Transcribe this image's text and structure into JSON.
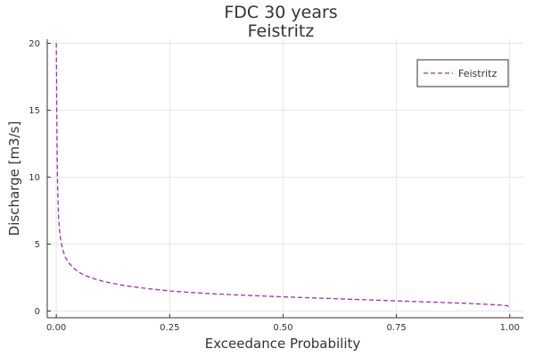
{
  "chart_data": {
    "type": "line",
    "title": "FDC 30 years",
    "subtitle": "Feistritz",
    "xlabel": "Exceedance Probability",
    "ylabel": "Discharge [m3/s]",
    "xlim": [
      -0.02,
      1.03
    ],
    "ylim": [
      -0.5,
      20.3
    ],
    "x_ticks": [
      0.0,
      0.25,
      0.5,
      0.75,
      1.0
    ],
    "x_tick_labels": [
      "0.00",
      "0.25",
      "0.50",
      "0.75",
      "1.00"
    ],
    "y_ticks": [
      0,
      5,
      10,
      15,
      20
    ],
    "y_tick_labels": [
      "0",
      "5",
      "10",
      "15",
      "20"
    ],
    "grid": true,
    "legend_position": "top-right",
    "series": [
      {
        "name": "Feistritz",
        "color": "#9b30b8",
        "line_style": "dashed",
        "x": [
          0.0,
          0.001,
          0.002,
          0.003,
          0.005,
          0.007,
          0.01,
          0.015,
          0.02,
          0.03,
          0.04,
          0.05,
          0.06,
          0.08,
          0.1,
          0.12,
          0.15,
          0.2,
          0.25,
          0.3,
          0.35,
          0.4,
          0.45,
          0.5,
          0.55,
          0.6,
          0.65,
          0.7,
          0.75,
          0.8,
          0.85,
          0.9,
          0.95,
          0.98,
          0.995,
          1.0
        ],
        "y": [
          20.0,
          15.0,
          11.0,
          9.0,
          7.0,
          6.0,
          5.2,
          4.5,
          4.0,
          3.5,
          3.15,
          2.9,
          2.7,
          2.45,
          2.25,
          2.1,
          1.9,
          1.68,
          1.5,
          1.38,
          1.28,
          1.2,
          1.13,
          1.06,
          1.0,
          0.94,
          0.88,
          0.82,
          0.76,
          0.7,
          0.64,
          0.58,
          0.5,
          0.44,
          0.4,
          0.2
        ]
      }
    ]
  }
}
